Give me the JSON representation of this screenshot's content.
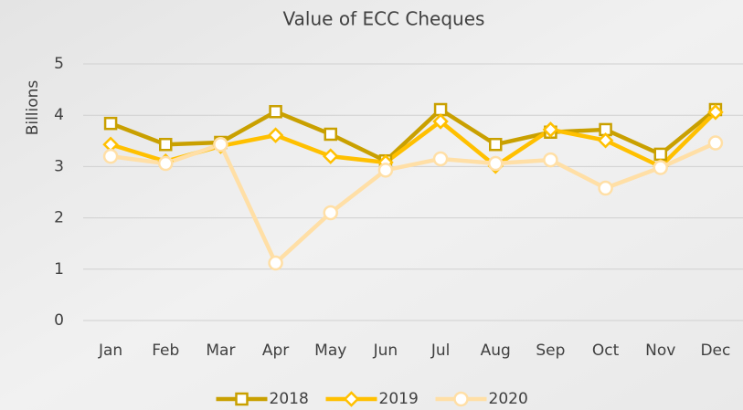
{
  "chart_data": {
    "type": "line",
    "title": "Value of ECC Cheques",
    "y_label": "Billions",
    "categories": [
      "Jan",
      "Feb",
      "Mar",
      "Apr",
      "May",
      "Jun",
      "Jul",
      "Aug",
      "Sep",
      "Oct",
      "Nov",
      "Dec"
    ],
    "series": [
      {
        "name": "2018",
        "color": "#c9a000",
        "marker": "square",
        "values": [
          3.84,
          3.43,
          3.47,
          4.07,
          3.63,
          3.11,
          4.11,
          3.43,
          3.67,
          3.72,
          3.24,
          4.11
        ]
      },
      {
        "name": "2019",
        "color": "#ffc000",
        "marker": "diamond",
        "values": [
          3.43,
          3.1,
          3.4,
          3.61,
          3.2,
          3.08,
          3.88,
          3.01,
          3.72,
          3.51,
          3.0,
          4.06
        ]
      },
      {
        "name": "2020",
        "color": "#ffdfa6",
        "marker": "circle",
        "values": [
          3.2,
          3.06,
          3.43,
          1.12,
          2.1,
          2.93,
          3.15,
          3.06,
          3.13,
          2.58,
          2.98,
          3.46
        ]
      }
    ],
    "ylim": [
      0,
      5
    ],
    "yticks": [
      0,
      1,
      2,
      3,
      4,
      5
    ],
    "grid": true,
    "legend": "bottom"
  }
}
